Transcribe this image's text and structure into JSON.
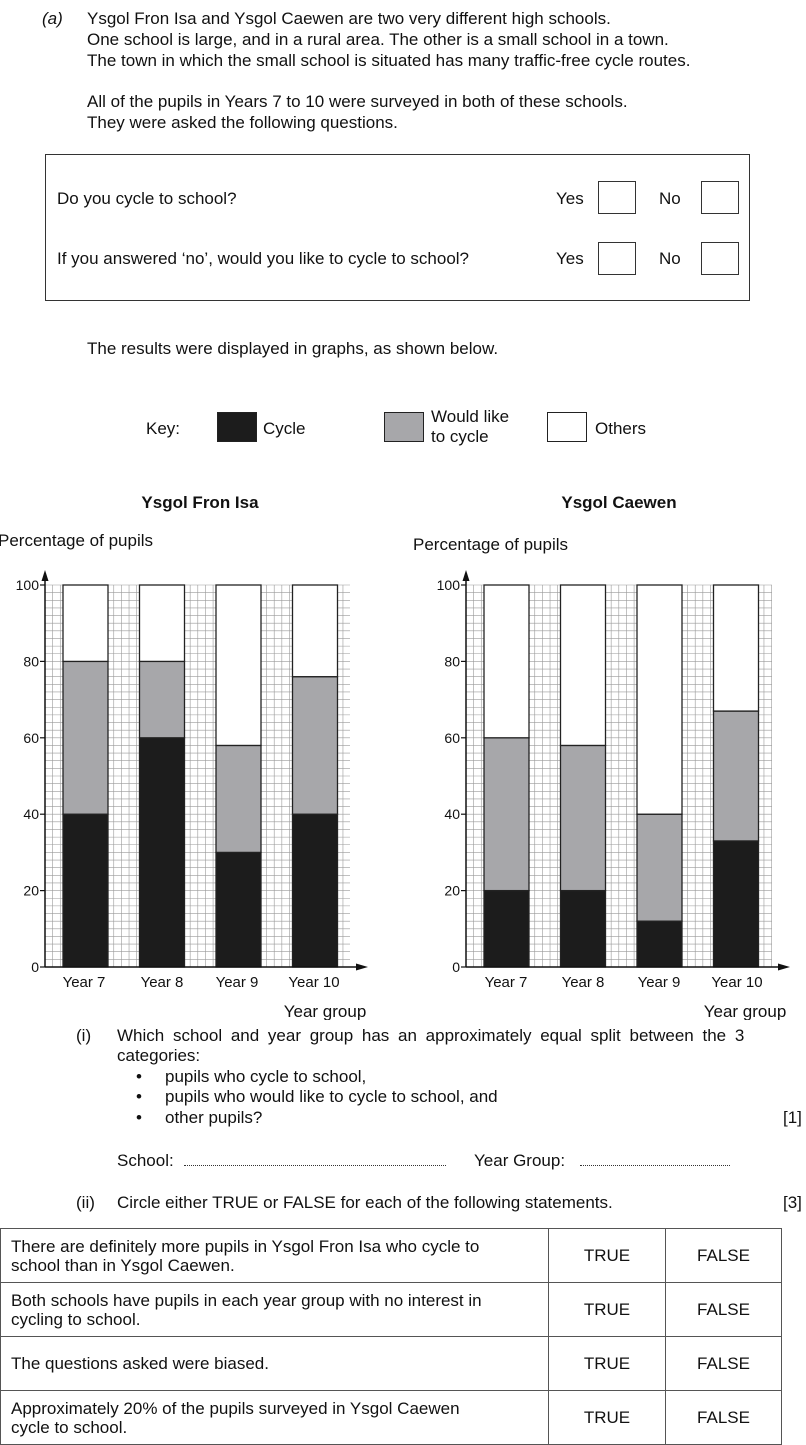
{
  "part_label": "(a)",
  "intro_lines": [
    "Ysgol Fron Isa and Ysgol Caewen are two very different high schools.",
    "One school is large, and in a rural area. The other is a small school in a town.",
    "The town in which the small school is situated has many traffic-free cycle routes."
  ],
  "survey_lines": [
    "All of the pupils in Years 7 to 10 were surveyed in both of these schools.",
    "They were asked the following questions."
  ],
  "questionnaire": {
    "q1": "Do you cycle to school?",
    "q2": "If you answered ‘no’, would you like to cycle to school?",
    "yes_label": "Yes",
    "no_label": "No"
  },
  "results_text": "The results were displayed in graphs, as shown below.",
  "key": {
    "label": "Key:",
    "cycle": "Cycle",
    "would_like_line1": "Would like",
    "would_like_line2": "to cycle",
    "others": "Others",
    "colors": {
      "cycle": "#1c1c1c",
      "would_like": "#a7a7aa",
      "others": "#ffffff"
    }
  },
  "chart_data": [
    {
      "type": "bar",
      "stacked": true,
      "title": "Ysgol Fron Isa",
      "ylabel": "Percentage of pupils",
      "xlabel": "Year group",
      "ylim": [
        0,
        100
      ],
      "yticks": [
        "0",
        "20",
        "40",
        "60",
        "80",
        "100"
      ],
      "grid": true,
      "categories": [
        "Year 7",
        "Year 8",
        "Year 9",
        "Year 10"
      ],
      "cumulative_tops": {
        "cycle": [
          40,
          60,
          30,
          40
        ],
        "would_like": [
          80,
          80,
          58,
          76
        ],
        "others": [
          100,
          100,
          100,
          100
        ]
      }
    },
    {
      "type": "bar",
      "stacked": true,
      "title": "Ysgol Caewen",
      "ylabel": "Percentage of pupils",
      "xlabel": "Year group",
      "ylim": [
        0,
        100
      ],
      "yticks": [
        "0",
        "20",
        "40",
        "60",
        "80",
        "100"
      ],
      "grid": true,
      "categories": [
        "Year 7",
        "Year 8",
        "Year 9",
        "Year 10"
      ],
      "cumulative_tops": {
        "cycle": [
          20,
          20,
          12,
          33
        ],
        "would_like": [
          60,
          58,
          40,
          67
        ],
        "others": [
          100,
          100,
          100,
          100
        ]
      }
    }
  ],
  "part_i": {
    "num": "(i)",
    "question_line1": "Which school and year group has an approximately equal split between the 3",
    "question_line2": "categories:",
    "bullets": [
      "pupils who cycle to school,",
      "pupils who would like to cycle to school, and",
      "other pupils?"
    ],
    "marks": "[1]",
    "school_label": "School:",
    "year_label": "Year Group:"
  },
  "part_ii": {
    "num": "(ii)",
    "instruction": "Circle either TRUE or FALSE for each of the following statements.",
    "marks": "[3]",
    "true_label": "TRUE",
    "false_label": "FALSE",
    "statements": [
      {
        "line1": "There are definitely more pupils in Ysgol Fron Isa who cycle to",
        "line2": "school than in Ysgol Caewen."
      },
      {
        "line1": "Both schools have pupils in each year group with no interest in",
        "line2": "cycling to school."
      },
      {
        "line1": "The questions asked were biased.",
        "line2": ""
      },
      {
        "line1": "Approximately 20% of the pupils surveyed in Ysgol Caewen",
        "line2": "cycle to school."
      }
    ]
  }
}
